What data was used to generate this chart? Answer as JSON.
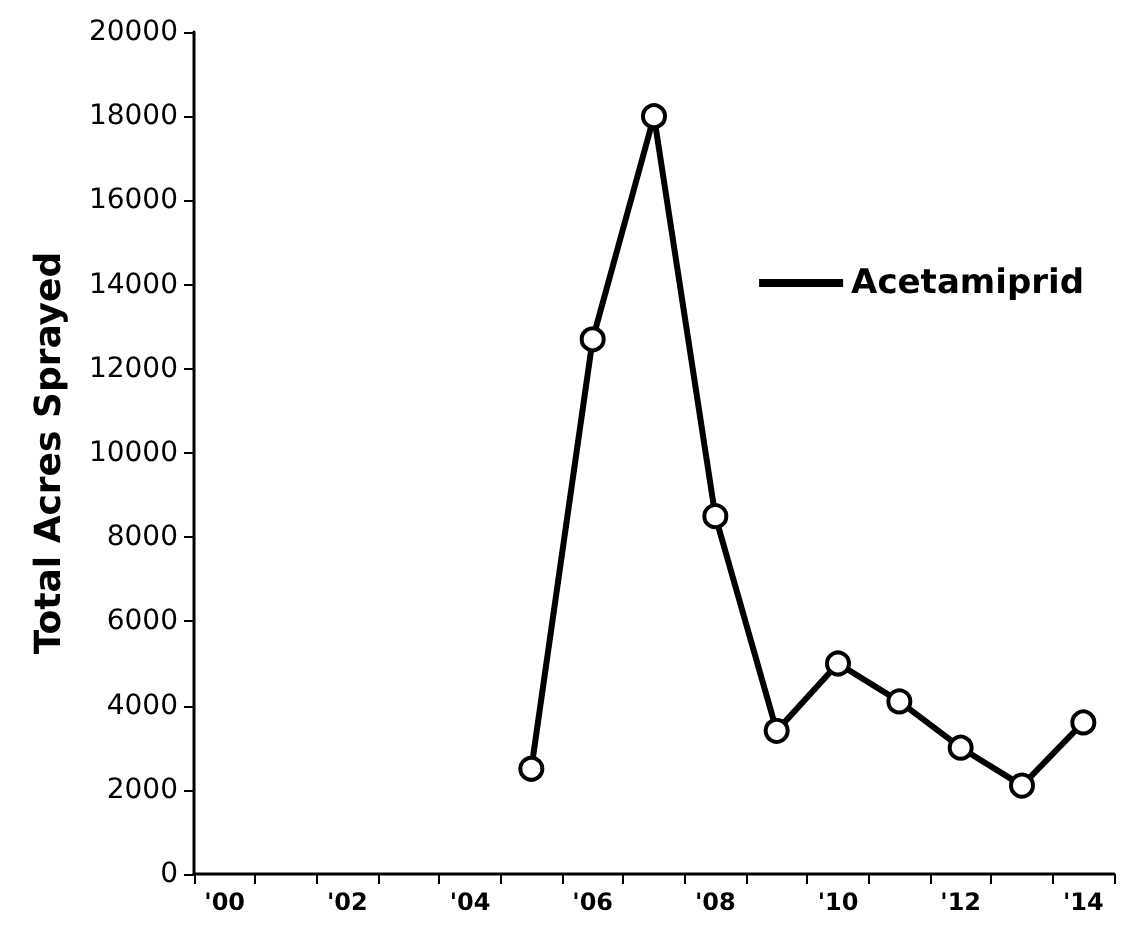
{
  "chart_data": {
    "type": "line",
    "ylabel": "Total Acres Sprayed",
    "categories": [
      "'00",
      null,
      "'02",
      null,
      "'04",
      null,
      "'06",
      null,
      "'08",
      null,
      "'10",
      null,
      "'12",
      null,
      "'14"
    ],
    "series": [
      {
        "name": "Acetamiprid",
        "color": "#000000",
        "values": [
          null,
          null,
          null,
          null,
          null,
          2500,
          12700,
          18000,
          8500,
          3400,
          5000,
          4100,
          3000,
          2100,
          3600
        ]
      }
    ],
    "ylim": [
      0,
      20000
    ],
    "yticks": [
      0,
      2000,
      4000,
      6000,
      8000,
      10000,
      12000,
      14000,
      16000,
      18000,
      20000
    ],
    "grid": false,
    "legend": "top right",
    "marker": "circle",
    "line_style": "solid"
  }
}
